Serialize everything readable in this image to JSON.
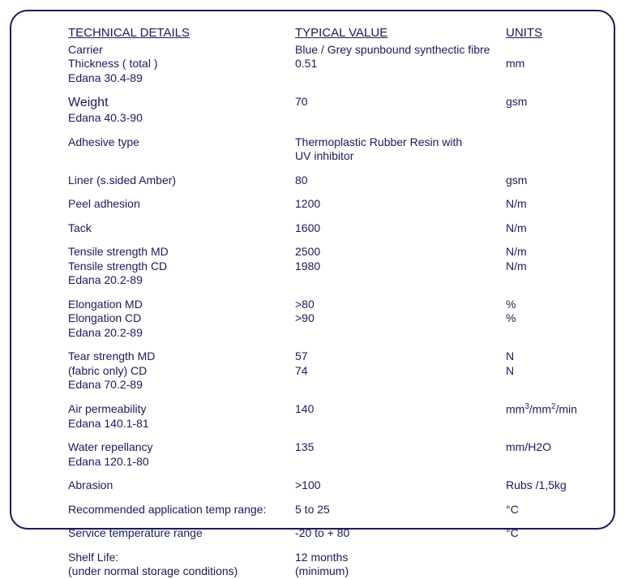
{
  "headers": {
    "detail": "TECHNICAL DETAILS",
    "value": "TYPICAL VALUE",
    "units": "UNITS"
  },
  "groups": [
    {
      "lines": [
        {
          "detail": "Carrier",
          "value": "Blue / Grey spunbound synthectic fibre",
          "unit": ""
        },
        {
          "detail": "Thickness ( total )",
          "value": "0.51",
          "unit": "mm"
        },
        {
          "detail": "Edana 30.4-89",
          "value": "",
          "unit": ""
        }
      ]
    },
    {
      "lines": [
        {
          "detail": "Weight",
          "value": "70",
          "unit": "gsm",
          "weight": true
        },
        {
          "detail": "Edana 40.3-90",
          "value": "",
          "unit": ""
        }
      ]
    },
    {
      "lines": [
        {
          "detail": "Adhesive type",
          "value": "Thermoplastic Rubber Resin with",
          "unit": ""
        },
        {
          "detail": "",
          "value": "UV inhibitor",
          "unit": ""
        }
      ]
    },
    {
      "lines": [
        {
          "detail": "Liner (s.sided Amber)",
          "value": "80",
          "unit": "gsm"
        }
      ]
    },
    {
      "lines": [
        {
          "detail": "Peel adhesion",
          "value": "1200",
          "unit": "N/m"
        }
      ]
    },
    {
      "lines": [
        {
          "detail": "Tack",
          "value": "1600",
          "unit": "N/m"
        }
      ]
    },
    {
      "lines": [
        {
          "detail": "Tensile strength MD",
          "value": "2500",
          "unit": "N/m"
        },
        {
          "detail": "Tensile strength CD",
          "value": "1980",
          "unit": "N/m"
        },
        {
          "detail": "Edana 20.2-89",
          "value": "",
          "unit": ""
        }
      ]
    },
    {
      "lines": [
        {
          "detail": "Elongation MD",
          "value": ">80",
          "unit": "%"
        },
        {
          "detail": "Elongation CD",
          "value": ">90",
          "unit": "%"
        },
        {
          "detail": "Edana 20.2-89",
          "value": "",
          "unit": ""
        }
      ]
    },
    {
      "lines": [
        {
          "detail": "Tear strength MD",
          "value": "57",
          "unit": "N"
        },
        {
          "detail": "(fabric only)   CD",
          "value": "74",
          "unit": "N"
        },
        {
          "detail": "Edana 70.2-89",
          "value": "",
          "unit": ""
        }
      ]
    },
    {
      "lines": [
        {
          "detail": "Air permeability",
          "value": "140",
          "unit": "mm³/mm²/min",
          "unitHtml": "mm<sup>3</sup>/mm<sup>2</sup>/min"
        },
        {
          "detail": "Edana 140.1-81",
          "value": "",
          "unit": ""
        }
      ]
    },
    {
      "lines": [
        {
          "detail": "Water repellancy",
          "value": "135",
          "unit": "mm/H2O"
        },
        {
          "detail": "Edana 120.1-80",
          "value": "",
          "unit": ""
        }
      ]
    },
    {
      "lines": [
        {
          "detail": "Abrasion",
          "value": ">100",
          "unit": "Rubs /1,5kg"
        }
      ]
    },
    {
      "lines": [
        {
          "detail": "Recommended application temp range:",
          "value": "5 to 25",
          "unit": "°C"
        }
      ]
    },
    {
      "lines": [
        {
          "detail": "Service temperature range",
          "value": "-20 to + 80",
          "unit": "°C"
        }
      ]
    },
    {
      "lines": [
        {
          "detail": "Shelf Life:",
          "value": "12 months",
          "unit": ""
        },
        {
          "detail": "(under normal storage conditions)",
          "value": "(minimum)",
          "unit": ""
        }
      ]
    }
  ],
  "colors": {
    "border": "#1a1a5c",
    "text": "#1a1a5c",
    "background": "#ffffff"
  }
}
